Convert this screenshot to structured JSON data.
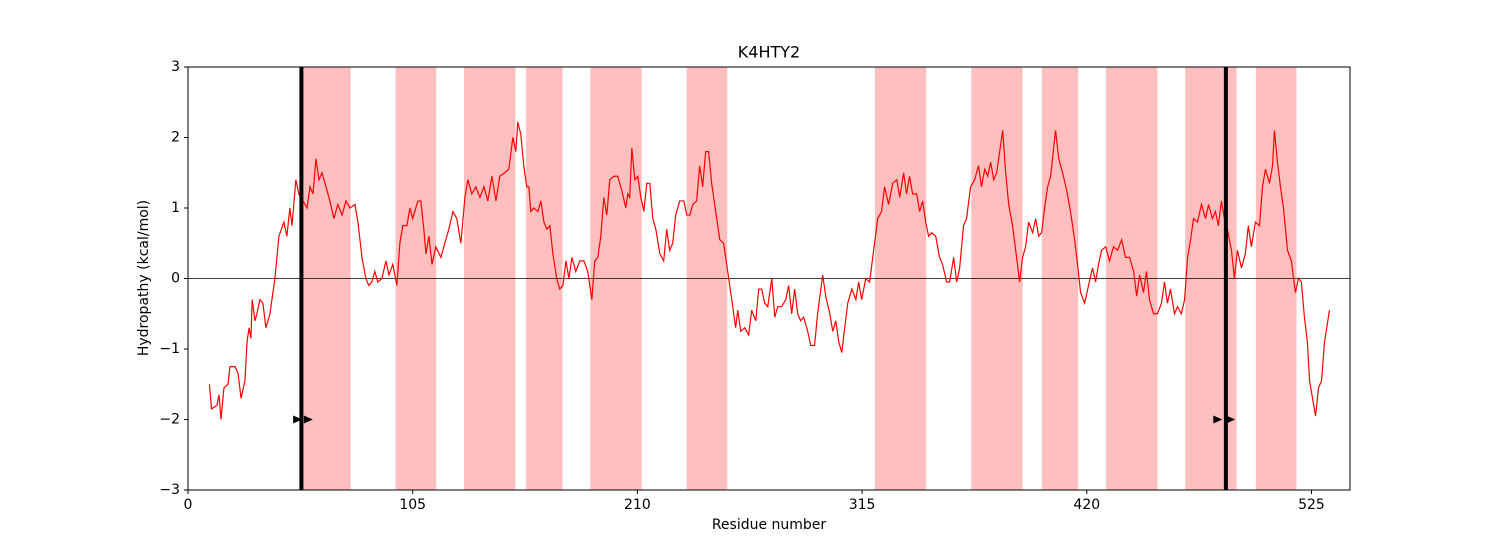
{
  "chart_data": {
    "type": "line",
    "title": "K4HTY2",
    "xlabel": "Residue number",
    "ylabel": "Hydropathy (kcal/mol)",
    "color": "#ff0000",
    "xlim": [
      0,
      543
    ],
    "ylim": [
      -3,
      3
    ],
    "xticks": [
      0,
      105,
      210,
      315,
      420,
      525
    ],
    "yticks": [
      {
        "value": -3,
        "label": "−3"
      },
      {
        "value": -2,
        "label": "−2"
      },
      {
        "value": -1,
        "label": "−1"
      },
      0,
      1,
      2,
      3
    ],
    "hlines": [
      0
    ],
    "hline_color": "#000000",
    "vlines": [
      53,
      485
    ],
    "vline_color": "#000000",
    "spans": [
      [
        54,
        76
      ],
      [
        97,
        116
      ],
      [
        129,
        153
      ],
      [
        158,
        175
      ],
      [
        188,
        212
      ],
      [
        233,
        252
      ],
      [
        321,
        345
      ],
      [
        366,
        390
      ],
      [
        399,
        416
      ],
      [
        429,
        453
      ],
      [
        466,
        490
      ],
      [
        499,
        518
      ]
    ],
    "span_color": "#ffbfbf",
    "markers": {
      "x": [
        51,
        56,
        481,
        487
      ],
      "y": [
        -2,
        -2,
        -2,
        -2
      ],
      "color": "#000000"
    },
    "x": [
      10,
      11,
      13.5,
      14.5,
      15.4,
      16.8,
      18.7,
      19.6,
      22,
      23.4,
      24.8,
      26.6,
      27.6,
      28.5,
      29.4,
      30,
      31.3,
      32.2,
      33.6,
      35,
      36.4,
      38.3,
      40.6,
      42.5,
      44.8,
      46.2,
      47.6,
      48.6,
      50.4,
      51.8,
      53.7,
      55.6,
      57,
      58.4,
      59.8,
      61.2,
      62.6,
      64.5,
      66.3,
      68.2,
      70,
      72,
      73.8,
      75.7,
      78,
      79.4,
      81.3,
      83.1,
      84.5,
      85.9,
      87.3,
      88.7,
      90.6,
      92.5,
      93.9,
      95.7,
      97.6,
      99,
      100.4,
      102.3,
      103.7,
      105,
      107.4,
      108.8,
      110.2,
      111.2,
      112.6,
      114,
      115.8,
      118.2,
      120,
      121.9,
      123.8,
      125.6,
      127.5,
      129.4,
      130.8,
      132.6,
      134.5,
      136.4,
      138.3,
      140.1,
      142,
      143.9,
      145.7,
      148,
      149.9,
      151.8,
      153.2,
      154.1,
      155.5,
      156.9,
      158.3,
      159.3,
      160.2,
      161.6,
      163.5,
      164.9,
      166.3,
      167.7,
      169.1,
      170.5,
      172.3,
      173.7,
      175.2,
      176.6,
      178,
      179.4,
      181.2,
      183.1,
      185,
      186.8,
      188.7,
      190.1,
      191.5,
      192.9,
      194.3,
      195.7,
      197.1,
      199,
      200.8,
      202.7,
      204.6,
      205.5,
      206.4,
      207.4,
      208.8,
      210.2,
      211.6,
      213,
      214.4,
      215.8,
      217.2,
      218.6,
      220.5,
      222.3,
      223.7,
      225.1,
      226.5,
      227.9,
      229.8,
      231.7,
      233.1,
      234.5,
      235.9,
      237.7,
      239.1,
      240.5,
      241.9,
      243.3,
      244.7,
      246.6,
      248.5,
      250.3,
      252.2,
      254.1,
      255.9,
      256.9,
      258.3,
      260.2,
      262,
      263.4,
      265.3,
      266.7,
      268.1,
      269.5,
      270.9,
      272.8,
      274.2,
      275.6,
      277.4,
      279.3,
      280.7,
      282.1,
      283.5,
      284.9,
      286.3,
      287.7,
      289.6,
      291,
      292.8,
      294.2,
      296.6,
      298,
      299.9,
      301.3,
      302.7,
      304.1,
      305.5,
      306.9,
      308.3,
      310.2,
      312.1,
      313.4,
      314.8,
      316.7,
      318.5,
      320.4,
      322.3,
      324.1,
      325.5,
      327.4,
      329.3,
      331.2,
      332.6,
      334.4,
      335.8,
      337.2,
      338.6,
      340.5,
      341.9,
      343.3,
      344.7,
      346.1,
      347.5,
      349.4,
      351.2,
      352.6,
      354.5,
      355.9,
      357.8,
      359.2,
      360.6,
      362.4,
      363.8,
      365.7,
      367.6,
      369.4,
      370.8,
      372.3,
      373.7,
      375.1,
      376.5,
      377.9,
      379.3,
      380.7,
      382.1,
      383.5,
      385.3,
      387.2,
      388.6,
      390,
      391.4,
      392.8,
      394.7,
      396.1,
      397.5,
      398.9,
      400.3,
      401.7,
      403.1,
      404.5,
      405.4,
      406.9,
      408.7,
      410.6,
      412.4,
      414.3,
      415.7,
      417.1,
      419,
      420.8,
      422.7,
      424.1,
      425.5,
      426.9,
      428.8,
      430.6,
      432.5,
      434.4,
      436.3,
      438.1,
      440,
      441.9,
      443.3,
      444.7,
      446.5,
      447.9,
      449.3,
      451.2,
      453,
      454.9,
      456.3,
      457.7,
      459.1,
      461,
      462.4,
      464.2,
      465.7,
      467.1,
      468.5,
      469.9,
      471.7,
      473.6,
      475.5,
      476.9,
      478.7,
      480.1,
      481.5,
      482.9,
      484.3,
      485.7,
      487.6,
      489,
      490.4,
      492.3,
      494.1,
      495.5,
      496.9,
      498.8,
      500.7,
      502.1,
      503.5,
      505.4,
      506.8,
      507.7,
      509.1,
      510.5,
      511.9,
      513.8,
      515.6,
      517.5,
      518.9,
      520.3,
      521.7,
      523.1,
      524.1,
      525.5,
      526.9,
      528.3,
      529.7,
      531.1,
      533.4
    ],
    "values": [
      -1.5,
      -1.85,
      -1.8,
      -1.65,
      -2.0,
      -1.55,
      -1.5,
      -1.25,
      -1.25,
      -1.35,
      -1.7,
      -1.45,
      -0.9,
      -0.7,
      -0.85,
      -0.3,
      -0.6,
      -0.5,
      -0.3,
      -0.35,
      -0.7,
      -0.5,
      0.0,
      0.6,
      0.8,
      0.6,
      1.0,
      0.75,
      1.4,
      1.2,
      1.1,
      1.0,
      1.3,
      1.2,
      1.7,
      1.4,
      1.5,
      1.3,
      1.1,
      0.85,
      1.05,
      0.9,
      1.1,
      1.0,
      1.05,
      0.8,
      0.3,
      0.0,
      -0.1,
      -0.05,
      0.1,
      -0.05,
      0.0,
      0.25,
      0.05,
      0.2,
      -0.1,
      0.5,
      0.75,
      0.75,
      1.0,
      0.85,
      1.1,
      1.1,
      0.7,
      0.35,
      0.6,
      0.2,
      0.45,
      0.3,
      0.5,
      0.7,
      0.95,
      0.85,
      0.5,
      1.15,
      1.4,
      1.2,
      1.3,
      1.15,
      1.3,
      1.1,
      1.45,
      1.1,
      1.45,
      1.5,
      1.55,
      2.0,
      1.8,
      2.22,
      2.05,
      1.6,
      1.3,
      1.3,
      0.95,
      1.0,
      0.95,
      1.1,
      0.8,
      0.7,
      0.75,
      0.35,
      0.0,
      -0.15,
      -0.1,
      0.25,
      0.0,
      0.3,
      0.1,
      0.25,
      0.25,
      0.1,
      -0.3,
      0.25,
      0.3,
      0.6,
      1.15,
      0.9,
      1.4,
      1.45,
      1.45,
      1.25,
      1.0,
      1.2,
      1.15,
      1.85,
      1.4,
      1.45,
      1.15,
      0.95,
      1.35,
      1.35,
      0.85,
      0.7,
      0.35,
      0.25,
      0.7,
      0.4,
      0.5,
      0.9,
      1.1,
      1.1,
      0.9,
      0.9,
      1.05,
      1.1,
      1.6,
      1.3,
      1.8,
      1.8,
      1.35,
      0.95,
      0.55,
      0.5,
      0.1,
      -0.3,
      -0.7,
      -0.45,
      -0.75,
      -0.7,
      -0.8,
      -0.45,
      -0.6,
      -0.15,
      -0.15,
      -0.35,
      -0.4,
      0.0,
      -0.55,
      -0.4,
      -0.4,
      -0.3,
      -0.1,
      -0.5,
      -0.15,
      -0.5,
      -0.6,
      -0.55,
      -0.75,
      -0.95,
      -0.95,
      -0.5,
      0.05,
      -0.25,
      -0.5,
      -0.75,
      -0.6,
      -0.9,
      -1.05,
      -0.7,
      -0.35,
      -0.15,
      -0.3,
      -0.05,
      -0.3,
      0.0,
      -0.05,
      0.4,
      0.85,
      0.95,
      1.3,
      1.05,
      1.35,
      1.4,
      1.15,
      1.5,
      1.2,
      1.45,
      1.2,
      1.2,
      0.95,
      1.1,
      0.8,
      0.6,
      0.65,
      0.6,
      0.3,
      0.2,
      -0.05,
      -0.05,
      0.3,
      -0.05,
      0.15,
      0.75,
      0.85,
      1.3,
      1.4,
      1.6,
      1.3,
      1.55,
      1.45,
      1.65,
      1.4,
      1.5,
      1.8,
      2.1,
      1.5,
      1.05,
      0.75,
      0.3,
      -0.05,
      0.3,
      0.45,
      0.8,
      0.65,
      0.85,
      0.6,
      0.65,
      1.0,
      1.3,
      1.45,
      1.85,
      2.1,
      1.7,
      1.5,
      1.25,
      0.95,
      0.55,
      0.2,
      -0.2,
      -0.35,
      -0.1,
      0.15,
      -0.05,
      0.2,
      0.4,
      0.45,
      0.25,
      0.45,
      0.4,
      0.55,
      0.3,
      0.3,
      0.1,
      -0.25,
      0.05,
      -0.2,
      0.1,
      -0.3,
      -0.5,
      -0.5,
      -0.35,
      -0.05,
      -0.35,
      -0.15,
      -0.5,
      -0.4,
      -0.5,
      -0.3,
      0.3,
      0.55,
      0.85,
      0.8,
      1.05,
      0.85,
      1.05,
      0.85,
      0.95,
      0.75,
      1.1,
      0.85,
      0.7,
      0.4,
      0.0,
      0.4,
      0.15,
      0.35,
      0.75,
      0.45,
      0.8,
      0.75,
      1.3,
      1.55,
      1.35,
      1.6,
      2.1,
      1.65,
      1.3,
      1.0,
      0.4,
      0.25,
      -0.2,
      0.0,
      -0.05,
      -0.55,
      -0.9,
      -1.45,
      -1.7,
      -1.95,
      -1.55,
      -1.45,
      -0.9,
      -0.45
    ]
  }
}
